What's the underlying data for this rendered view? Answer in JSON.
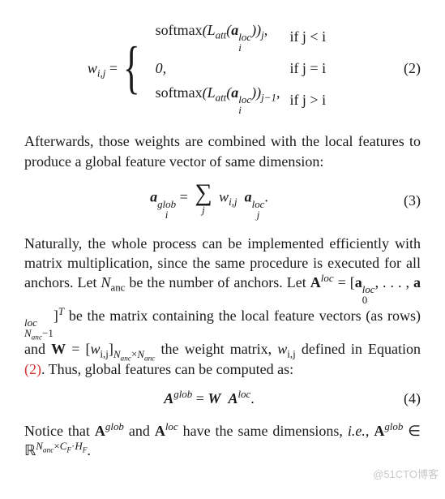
{
  "eq2": {
    "number": "(2)",
    "lhs": "w",
    "case1_expr": "softmax",
    "case1_inner": "L",
    "case1_cond": "if j < i",
    "case2_expr": "0,",
    "case2_cond": "if j = i",
    "case3_expr": "softmax",
    "case3_cond": "if j > i"
  },
  "para1": "Afterwards, those weights are combined with the local features to produce a global feature vector of same dimension:",
  "eq3": {
    "number": "(3)"
  },
  "para2a": "Naturally, the whole process can be implemented efficiently with matrix multiplication, since the same procedure is executed for all anchors. Let ",
  "para2b": " be the number of anchors. Let ",
  "para2c": " be the matrix containing the local feature vectors (as rows) and ",
  "para2d": " the weight matrix, ",
  "para2e": " defined in Equation ",
  "para2f": ". Thus, global features can be computed as:",
  "refnum": "(2)",
  "eq4": {
    "number": "(4)"
  },
  "para3a": "Notice that ",
  "para3b": " and ",
  "para3c": " have the same dimensions, ",
  "para3d": "i.e.",
  "para3e": ", ",
  "watermark": "@51CTO博客"
}
